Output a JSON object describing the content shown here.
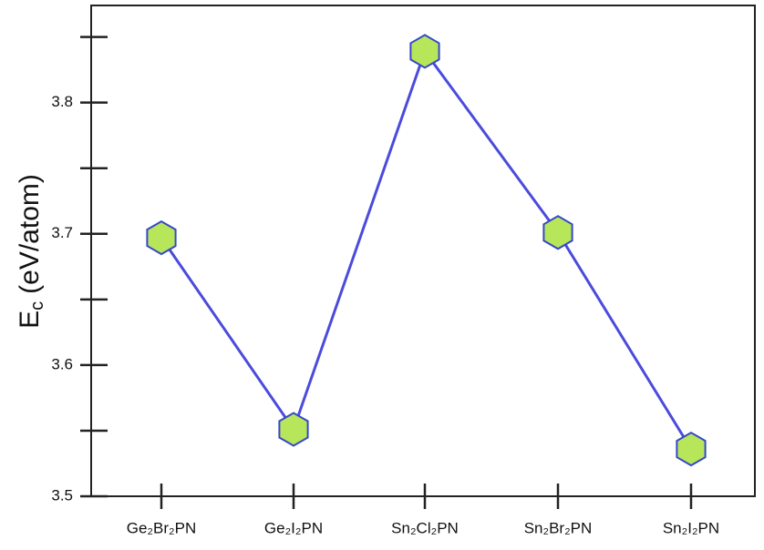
{
  "chart_data": {
    "type": "line",
    "ylabel": {
      "symbol": "E",
      "subscript": "c",
      "unit": "(eV/atom)"
    },
    "categories": [
      "Ge₂Br₂PN",
      "Ge₂I₂PN",
      "Sn₂Cl₂PN",
      "Sn₂Br₂PN",
      "Sn₂I₂PN"
    ],
    "series": [
      {
        "color": "#4b4bdc",
        "marker_fill": "#b8e65a",
        "marker_edge": "#3548c8",
        "values": [
          3.697,
          3.551,
          3.839,
          3.701,
          3.536
        ]
      }
    ],
    "ylim": [
      3.5,
      3.874
    ],
    "yticks": [
      {
        "value": 3.5,
        "label": "3.5"
      },
      3.6,
      3.7,
      3.8
    ],
    "minor_yticks": [
      3.55,
      3.65,
      3.75,
      3.85
    ]
  }
}
